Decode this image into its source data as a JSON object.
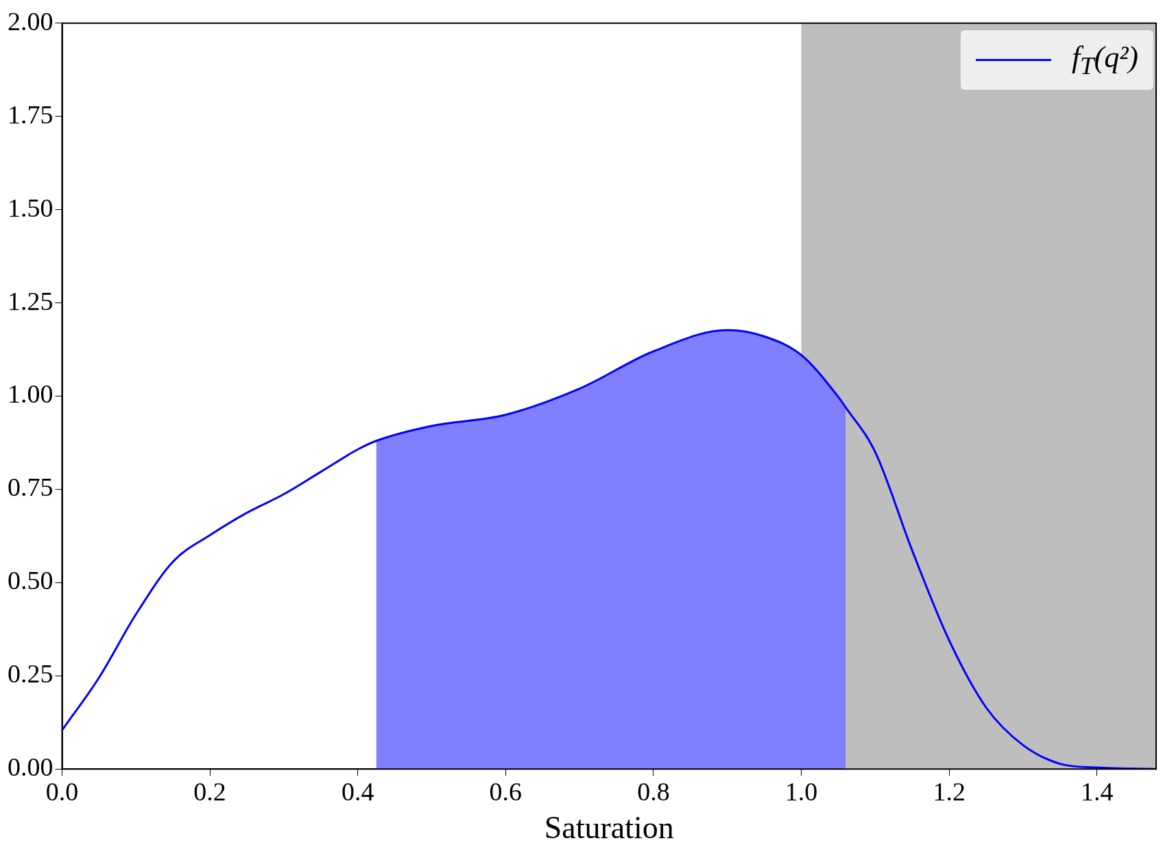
{
  "chart_data": {
    "type": "line",
    "xlabel": "Saturation",
    "xlim": [
      0,
      1.48
    ],
    "xticks": [
      {
        "value": 0,
        "label": "0.0"
      },
      {
        "value": 0.2,
        "label": "0.2"
      },
      {
        "value": 0.4,
        "label": "0.4"
      },
      {
        "value": 0.6,
        "label": "0.6"
      },
      {
        "value": 0.8,
        "label": "0.8"
      },
      {
        "value": 1,
        "label": "1.0"
      },
      {
        "value": 1.2,
        "label": "1.2"
      },
      {
        "value": 1.4,
        "label": "1.4"
      }
    ],
    "ylim": [
      0,
      2
    ],
    "yticks": [
      {
        "value": 0,
        "label": "0.00"
      },
      {
        "value": 0.25,
        "label": "0.25"
      },
      {
        "value": 0.5,
        "label": "0.50"
      },
      {
        "value": 0.75,
        "label": "0.75"
      },
      {
        "value": 1,
        "label": "1.00"
      },
      {
        "value": 1.25,
        "label": "1.25"
      },
      {
        "value": 1.5,
        "label": "1.50"
      },
      {
        "value": 1.75,
        "label": "1.75"
      },
      {
        "value": 2,
        "label": "2.00"
      }
    ],
    "legend": "top right",
    "bands": [
      {
        "axis": "x",
        "from": 1,
        "to": 1.48,
        "color": "#bebebe"
      }
    ],
    "series": [
      {
        "type": "area",
        "color": "#8080ff",
        "x": [
          0.425,
          0.5,
          0.6,
          0.7,
          0.8,
          0.9,
          0.95,
          1.0,
          1.05,
          1.06
        ],
        "values": [
          0.88,
          0.92,
          0.95,
          1.02,
          1.12,
          1.177,
          1.16,
          1.11,
          0.998,
          0.97
        ]
      },
      {
        "type": "line",
        "name": "f$_{T}$(q²)",
        "color": "#0000ff",
        "x": [
          0,
          0.05,
          0.1,
          0.15,
          0.2,
          0.25,
          0.3,
          0.35,
          0.4,
          0.425,
          0.5,
          0.6,
          0.7,
          0.8,
          0.9,
          0.95,
          1.0,
          1.05,
          1.06,
          1.1,
          1.15,
          1.2,
          1.25,
          1.3,
          1.35,
          1.4,
          1.48
        ],
        "values": [
          0.104,
          0.245,
          0.415,
          0.556,
          0.627,
          0.687,
          0.737,
          0.797,
          0.857,
          0.88,
          0.92,
          0.95,
          1.02,
          1.12,
          1.177,
          1.16,
          1.11,
          0.998,
          0.97,
          0.85,
          0.586,
          0.345,
          0.165,
          0.064,
          0.014,
          0.004,
          0
        ]
      }
    ]
  }
}
